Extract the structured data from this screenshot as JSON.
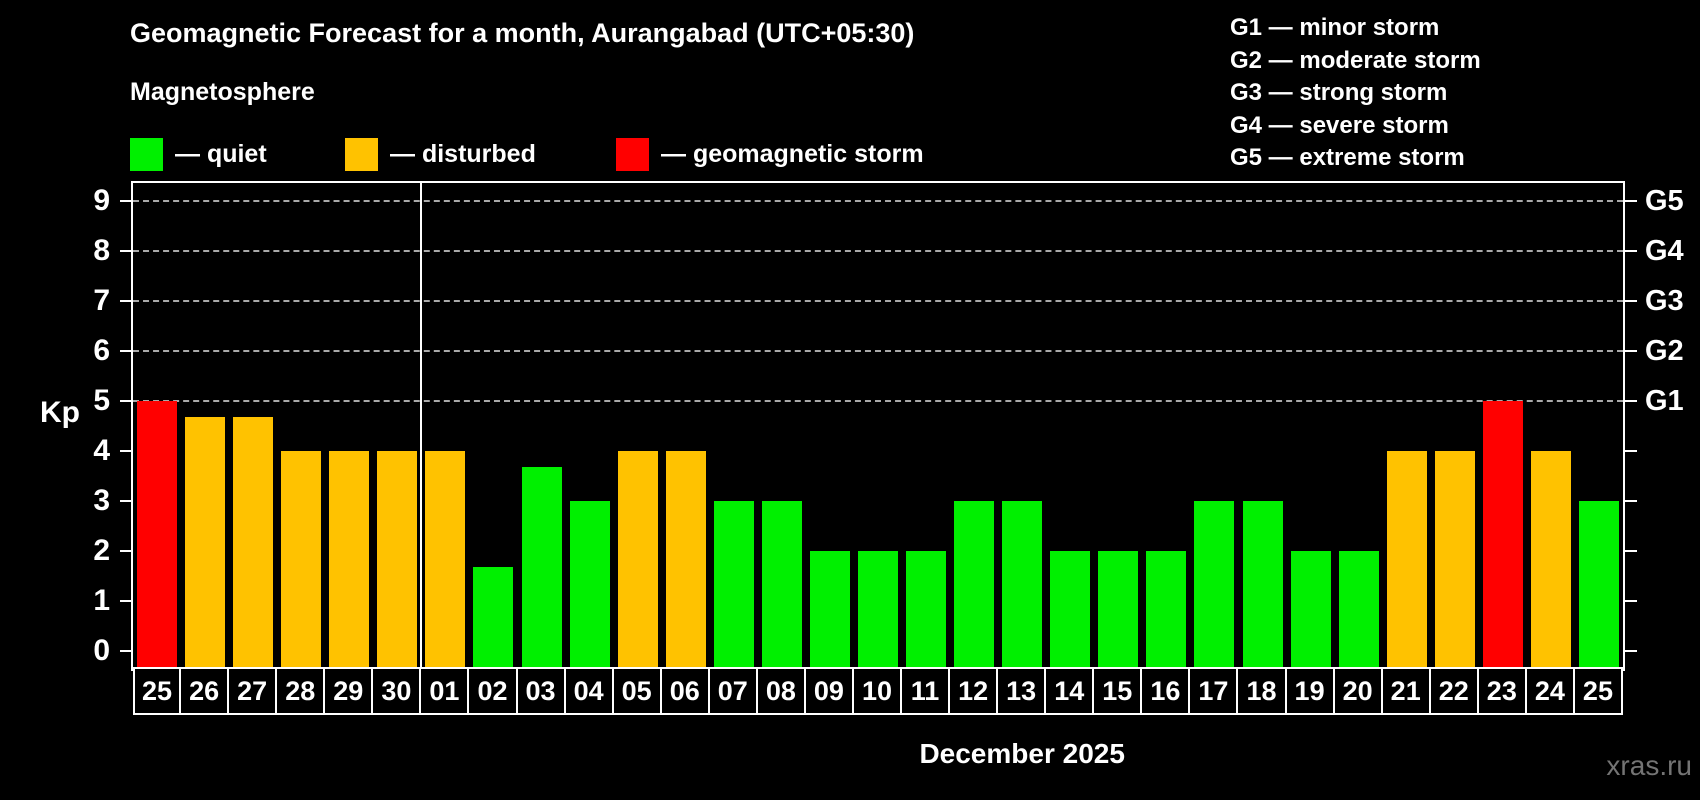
{
  "header": {
    "title": "Geomagnetic Forecast for a month, Aurangabad (UTC+05:30)",
    "subtitle": "Magnetosphere"
  },
  "legend": {
    "items": [
      {
        "status": "quiet",
        "label": "— quiet",
        "color": "#00f000"
      },
      {
        "status": "disturbed",
        "label": "— disturbed",
        "color": "#ffc200"
      },
      {
        "status": "storm",
        "label": "— geomagnetic storm",
        "color": "#ff0000"
      }
    ]
  },
  "g_scale": [
    {
      "code": "G1",
      "desc": "minor storm",
      "kp": 5
    },
    {
      "code": "G2",
      "desc": "moderate storm",
      "kp": 6
    },
    {
      "code": "G3",
      "desc": "strong storm",
      "kp": 7
    },
    {
      "code": "G4",
      "desc": "severe storm",
      "kp": 8
    },
    {
      "code": "G5",
      "desc": "extreme storm",
      "kp": 9
    }
  ],
  "chart_data": {
    "type": "bar",
    "title": "Geomagnetic Forecast for a month, Aurangabad (UTC+05:30)",
    "ylabel": "Kp",
    "xlabel": "December 2025",
    "ylim": [
      0,
      9.35
    ],
    "yticks": [
      0,
      1,
      2,
      3,
      4,
      5,
      6,
      7,
      8,
      9
    ],
    "gridlines_at": [
      5,
      6,
      7,
      8,
      9
    ],
    "grid": "dashed horizontal at G-storm levels only",
    "legend_position": "top",
    "right_axis_labels": {
      "G1": 5,
      "G2": 6,
      "G3": 7,
      "G4": 8,
      "G5": 9
    },
    "month_separator_after_column": 6,
    "colors": {
      "quiet": "#00f000",
      "disturbed": "#ffc200",
      "storm": "#ff0000"
    },
    "categories": [
      "25",
      "26",
      "27",
      "28",
      "29",
      "30",
      "01",
      "02",
      "03",
      "04",
      "05",
      "06",
      "07",
      "08",
      "09",
      "10",
      "11",
      "12",
      "13",
      "14",
      "15",
      "16",
      "17",
      "18",
      "19",
      "20",
      "21",
      "22",
      "23",
      "24",
      "25"
    ],
    "bars": [
      {
        "day": "25",
        "kp": 5.0,
        "status": "storm"
      },
      {
        "day": "26",
        "kp": 4.67,
        "status": "disturbed"
      },
      {
        "day": "27",
        "kp": 4.67,
        "status": "disturbed"
      },
      {
        "day": "28",
        "kp": 4.0,
        "status": "disturbed"
      },
      {
        "day": "29",
        "kp": 4.0,
        "status": "disturbed"
      },
      {
        "day": "30",
        "kp": 4.0,
        "status": "disturbed"
      },
      {
        "day": "01",
        "kp": 4.0,
        "status": "disturbed"
      },
      {
        "day": "02",
        "kp": 1.67,
        "status": "quiet"
      },
      {
        "day": "03",
        "kp": 3.67,
        "status": "quiet"
      },
      {
        "day": "04",
        "kp": 3.0,
        "status": "quiet"
      },
      {
        "day": "05",
        "kp": 4.0,
        "status": "disturbed"
      },
      {
        "day": "06",
        "kp": 4.0,
        "status": "disturbed"
      },
      {
        "day": "07",
        "kp": 3.0,
        "status": "quiet"
      },
      {
        "day": "08",
        "kp": 3.0,
        "status": "quiet"
      },
      {
        "day": "09",
        "kp": 2.0,
        "status": "quiet"
      },
      {
        "day": "10",
        "kp": 2.0,
        "status": "quiet"
      },
      {
        "day": "11",
        "kp": 2.0,
        "status": "quiet"
      },
      {
        "day": "12",
        "kp": 3.0,
        "status": "quiet"
      },
      {
        "day": "13",
        "kp": 3.0,
        "status": "quiet"
      },
      {
        "day": "14",
        "kp": 2.0,
        "status": "quiet"
      },
      {
        "day": "15",
        "kp": 2.0,
        "status": "quiet"
      },
      {
        "day": "16",
        "kp": 2.0,
        "status": "quiet"
      },
      {
        "day": "17",
        "kp": 3.0,
        "status": "quiet"
      },
      {
        "day": "18",
        "kp": 3.0,
        "status": "quiet"
      },
      {
        "day": "19",
        "kp": 2.0,
        "status": "quiet"
      },
      {
        "day": "20",
        "kp": 2.0,
        "status": "quiet"
      },
      {
        "day": "21",
        "kp": 4.0,
        "status": "disturbed"
      },
      {
        "day": "22",
        "kp": 4.0,
        "status": "disturbed"
      },
      {
        "day": "23",
        "kp": 5.0,
        "status": "storm"
      },
      {
        "day": "24",
        "kp": 4.0,
        "status": "disturbed"
      },
      {
        "day": "25",
        "kp": 3.0,
        "status": "quiet"
      }
    ]
  },
  "watermark": "xras.ru"
}
